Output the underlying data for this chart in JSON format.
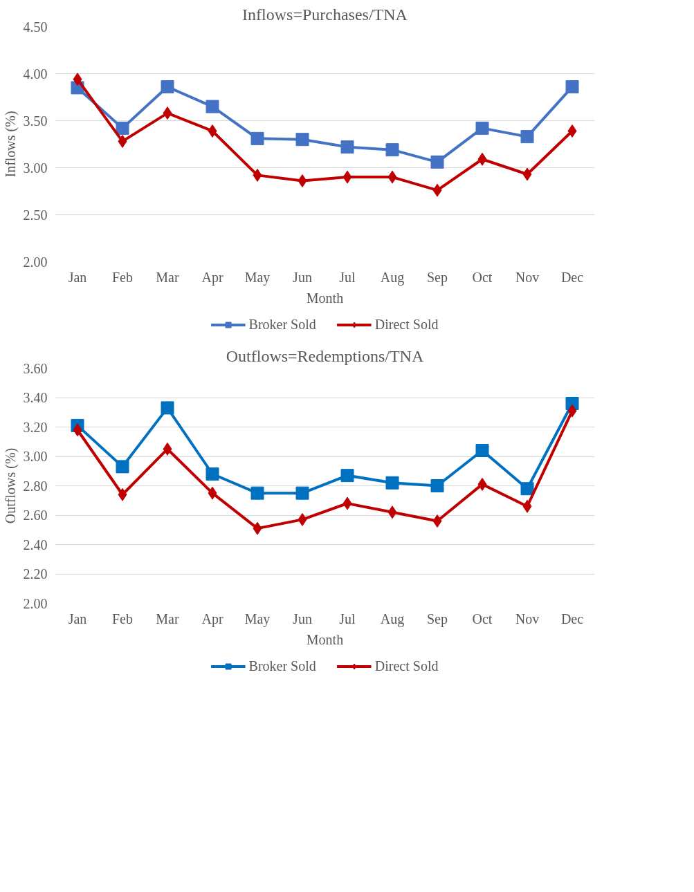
{
  "chart_data": [
    {
      "type": "line",
      "title": "Inflows=Purchases/TNA",
      "xlabel": "Month",
      "ylabel": "Inflows (%)",
      "categories": [
        "Jan",
        "Feb",
        "Mar",
        "Apr",
        "May",
        "Jun",
        "Jul",
        "Aug",
        "Sep",
        "Oct",
        "Nov",
        "Dec"
      ],
      "series": [
        {
          "name": "Broker Sold",
          "color": "#4472c4",
          "marker": "square",
          "values": [
            3.85,
            3.42,
            3.86,
            3.65,
            3.31,
            3.3,
            3.22,
            3.19,
            3.06,
            3.42,
            3.33,
            3.86
          ]
        },
        {
          "name": "Direct Sold",
          "color": "#c00000",
          "marker": "diamond",
          "values": [
            3.94,
            3.28,
            3.58,
            3.39,
            2.92,
            2.86,
            2.9,
            2.9,
            2.76,
            3.09,
            2.93,
            3.39
          ]
        }
      ],
      "ylim": [
        2.0,
        4.5
      ],
      "yticks": [
        {
          "value": 2.0,
          "label": "2.00"
        },
        {
          "value": 2.5,
          "label": "2.50"
        },
        {
          "value": 3.0,
          "label": "3.00"
        },
        {
          "value": 3.5,
          "label": "3.50"
        },
        {
          "value": 4.0,
          "label": "4.00"
        },
        {
          "value": 4.5,
          "label": "4.50"
        }
      ],
      "grid": "y",
      "legend": "bottom",
      "line_style": "solid"
    },
    {
      "type": "line",
      "title": "Outflows=Redemptions/TNA",
      "xlabel": "Month",
      "ylabel": "Outflows (%)",
      "categories": [
        "Jan",
        "Feb",
        "Mar",
        "Apr",
        "May",
        "Jun",
        "Jul",
        "Aug",
        "Sep",
        "Oct",
        "Nov",
        "Dec"
      ],
      "series": [
        {
          "name": "Broker Sold",
          "color": "#0070c0",
          "marker": "square",
          "values": [
            3.21,
            2.93,
            3.33,
            2.88,
            2.75,
            2.75,
            2.87,
            2.82,
            2.8,
            3.04,
            2.78,
            3.36
          ]
        },
        {
          "name": "Direct Sold",
          "color": "#c00000",
          "marker": "diamond",
          "values": [
            3.18,
            2.74,
            3.05,
            2.75,
            2.51,
            2.57,
            2.68,
            2.62,
            2.56,
            2.81,
            2.66,
            3.31
          ]
        }
      ],
      "ylim": [
        2.0,
        3.6
      ],
      "yticks": [
        {
          "value": 2.0,
          "label": "2.00"
        },
        {
          "value": 2.2,
          "label": "2.20"
        },
        {
          "value": 2.4,
          "label": "2.40"
        },
        {
          "value": 2.6,
          "label": "2.60"
        },
        {
          "value": 2.8,
          "label": "2.80"
        },
        {
          "value": 3.0,
          "label": "3.00"
        },
        {
          "value": 3.2,
          "label": "3.20"
        },
        {
          "value": 3.4,
          "label": "3.40"
        },
        {
          "value": 3.6,
          "label": "3.60"
        }
      ],
      "grid": "y",
      "legend": "bottom",
      "line_style": "solid"
    }
  ]
}
